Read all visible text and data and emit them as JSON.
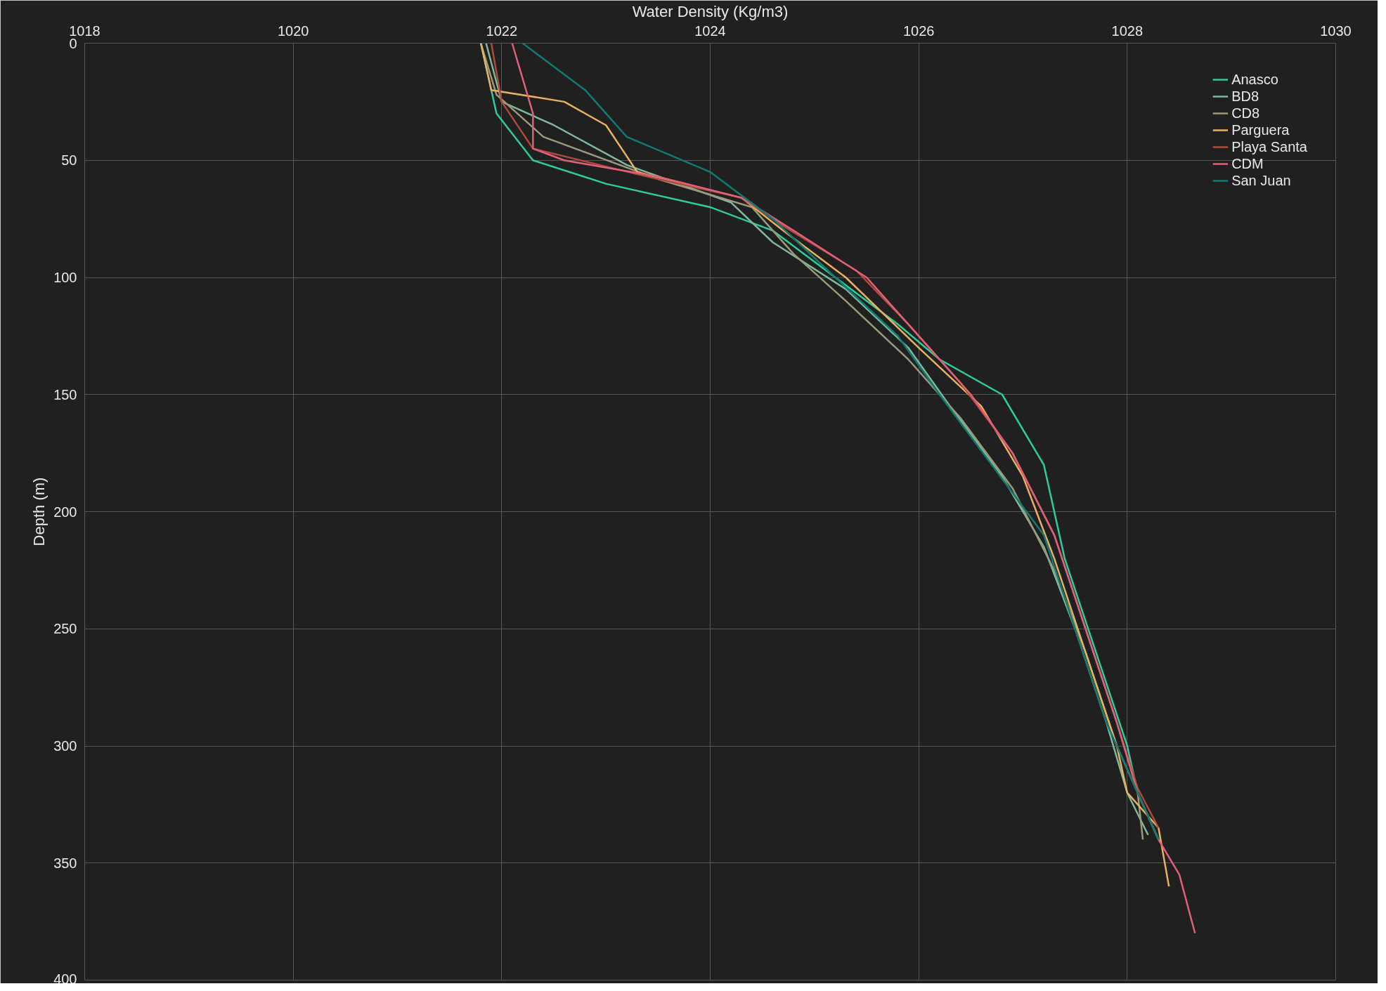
{
  "chart_data": {
    "type": "line",
    "xlabel": "Water Density (Kg/m3)",
    "ylabel": "Depth (m)",
    "xlim": [
      1018,
      1030
    ],
    "xticks": [
      1018,
      1020,
      1022,
      1024,
      1026,
      1028,
      1030
    ],
    "ylim": [
      400,
      0
    ],
    "yticks": [
      0,
      50,
      100,
      150,
      200,
      250,
      300,
      350,
      400
    ],
    "grid": true,
    "legend": "top right",
    "line_style": "solid",
    "marker": "none",
    "series": [
      {
        "name": "Anasco",
        "color": "#2ecc9a",
        "x": [
          1021.8,
          1021.95,
          1022.3,
          1023.0,
          1024.0,
          1024.6,
          1025.2,
          1025.8,
          1026.2,
          1026.8,
          1027.2,
          1027.4,
          1027.7,
          1028.0,
          1028.1,
          1028.3
        ],
        "values": [
          0,
          30,
          50,
          60,
          70,
          80,
          100,
          120,
          135,
          150,
          180,
          220,
          260,
          300,
          320,
          340
        ]
      },
      {
        "name": "BD8",
        "color": "#7fb89a",
        "x": [
          1021.85,
          1022.0,
          1022.5,
          1023.2,
          1024.2,
          1024.6,
          1025.3,
          1025.9,
          1026.3,
          1026.8,
          1027.2,
          1027.5,
          1027.8,
          1028.0,
          1028.2
        ],
        "values": [
          0,
          25,
          35,
          52,
          68,
          85,
          105,
          130,
          155,
          185,
          215,
          250,
          290,
          320,
          338
        ]
      },
      {
        "name": "CD8",
        "color": "#9a9a7a",
        "x": [
          1021.8,
          1021.95,
          1022.4,
          1023.5,
          1024.4,
          1024.8,
          1025.3,
          1025.9,
          1026.4,
          1026.9,
          1027.3,
          1027.6,
          1027.9,
          1028.1,
          1028.15
        ],
        "values": [
          0,
          22,
          40,
          58,
          70,
          90,
          110,
          135,
          160,
          190,
          225,
          260,
          300,
          320,
          340
        ]
      },
      {
        "name": "Parguera",
        "color": "#e8b060",
        "x": [
          1021.8,
          1021.9,
          1022.6,
          1023.0,
          1023.3,
          1024.3,
          1024.7,
          1025.3,
          1026.0,
          1026.6,
          1027.0,
          1027.3,
          1027.6,
          1027.9,
          1028.0,
          1028.3,
          1028.4
        ],
        "values": [
          0,
          20,
          25,
          35,
          55,
          66,
          80,
          100,
          130,
          155,
          185,
          220,
          260,
          300,
          320,
          335,
          360
        ]
      },
      {
        "name": "Playa Santa",
        "color": "#b04a3a",
        "x": [
          1021.9,
          1022.0,
          1022.3,
          1023.4,
          1024.3,
          1024.7,
          1025.4,
          1025.9,
          1026.4,
          1026.9,
          1027.3,
          1027.6,
          1027.9,
          1028.1,
          1028.3
        ],
        "values": [
          0,
          25,
          45,
          57,
          66,
          78,
          97,
          120,
          145,
          175,
          210,
          250,
          290,
          318,
          335
        ]
      },
      {
        "name": "CDM",
        "color": "#e0607a",
        "x": [
          1022.1,
          1022.3,
          1022.3,
          1022.6,
          1023.5,
          1024.3,
          1024.8,
          1025.5,
          1026.0,
          1026.5,
          1026.9,
          1027.3,
          1027.6,
          1027.9,
          1028.1,
          1028.3,
          1028.5,
          1028.65
        ],
        "values": [
          0,
          30,
          45,
          50,
          57,
          66,
          80,
          100,
          125,
          150,
          175,
          210,
          250,
          290,
          320,
          340,
          355,
          380
        ]
      },
      {
        "name": "San Juan",
        "color": "#107a70",
        "x": [
          1022.2,
          1022.8,
          1023.2,
          1024.0,
          1024.6,
          1025.2,
          1025.8,
          1026.2,
          1026.7,
          1027.2,
          1027.5,
          1027.8,
          1028.1,
          1028.3
        ],
        "values": [
          0,
          20,
          40,
          55,
          75,
          100,
          125,
          150,
          180,
          210,
          250,
          290,
          320,
          340
        ]
      }
    ]
  }
}
